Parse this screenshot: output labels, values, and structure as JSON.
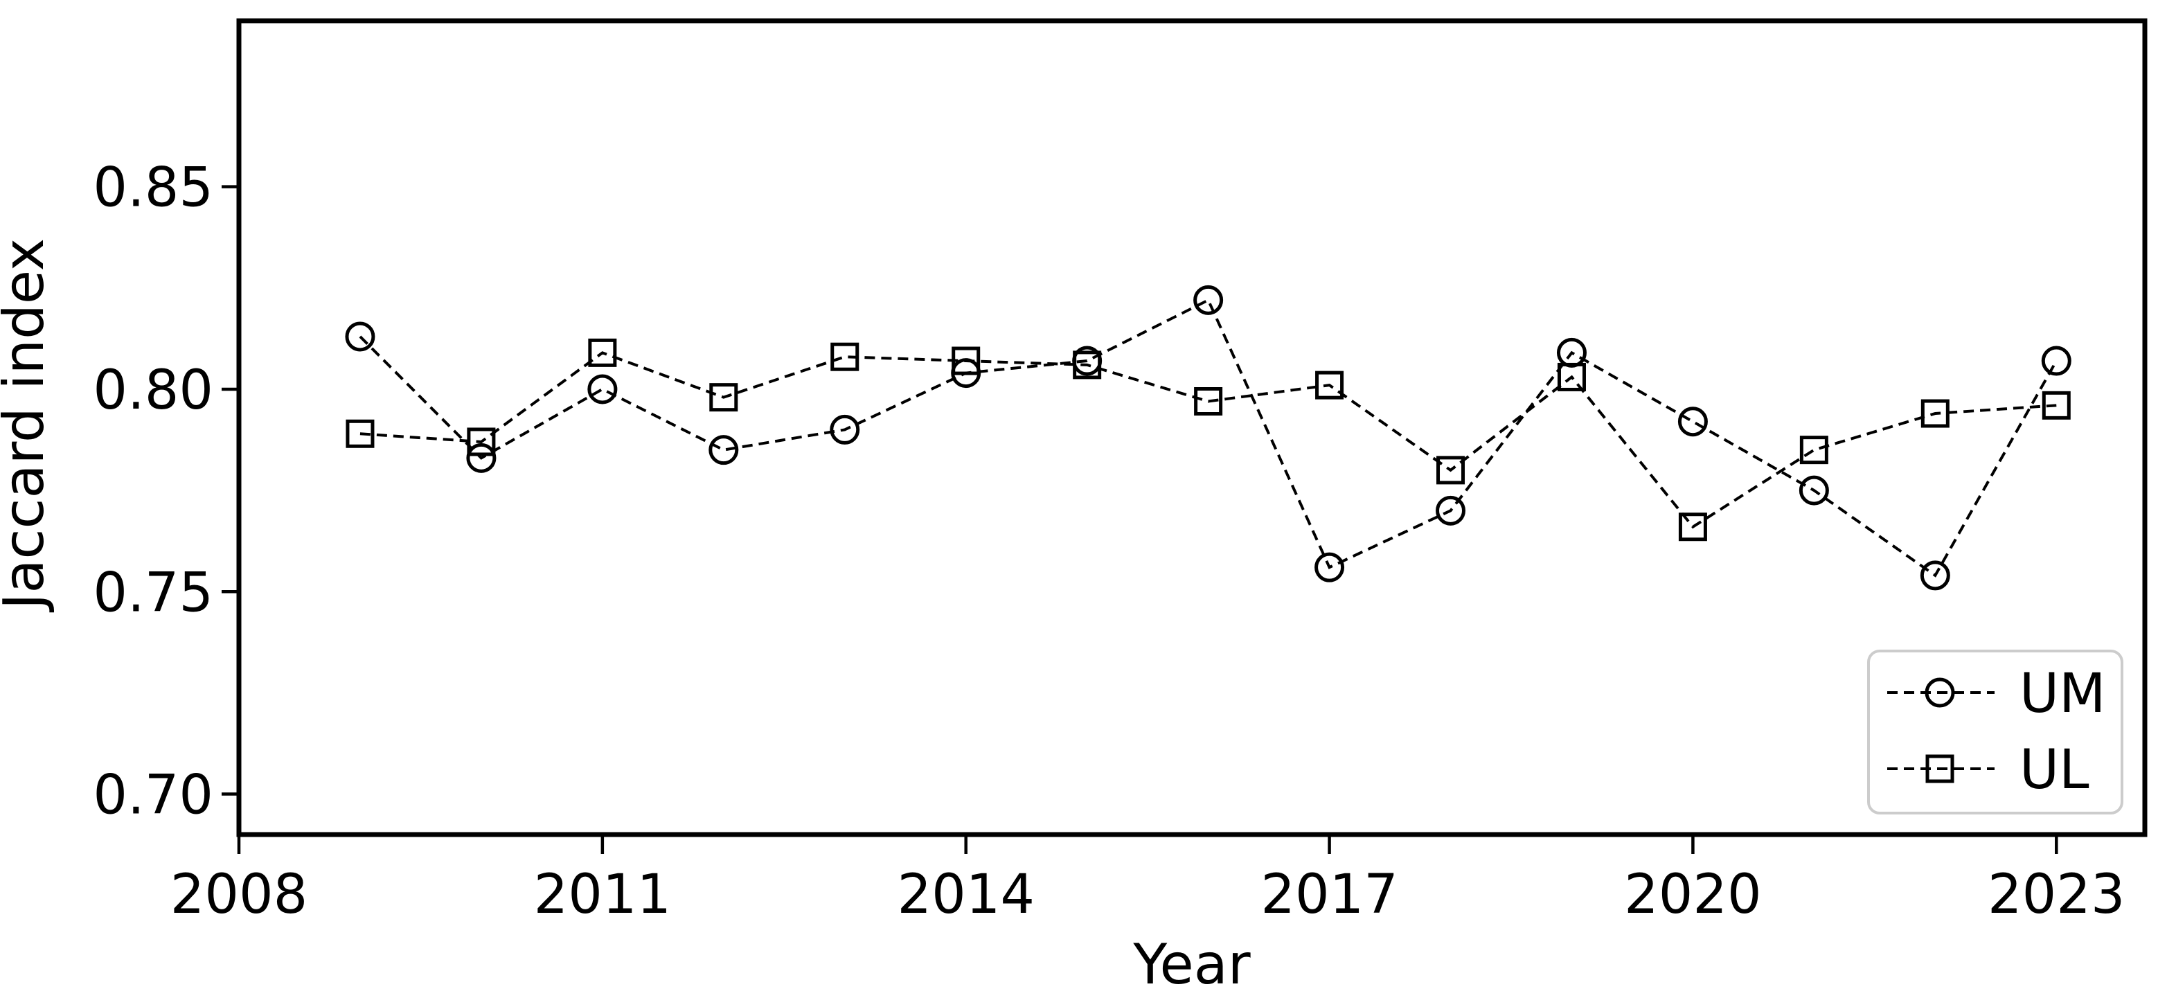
{
  "page": {
    "background": "#ffffff",
    "foreground": "#000000"
  },
  "chart_data": {
    "type": "line",
    "title": "",
    "xlabel": "Year",
    "ylabel": "Jaccard index",
    "x": [
      2009,
      2010,
      2011,
      2012,
      2013,
      2014,
      2015,
      2016,
      2017,
      2018,
      2019,
      2020,
      2021,
      2022,
      2023
    ],
    "series": [
      {
        "name": "UM",
        "marker": "circle",
        "line_style": "dashed",
        "color": "#000000",
        "values": [
          0.813,
          0.783,
          0.8,
          0.785,
          0.79,
          0.804,
          0.807,
          0.822,
          0.756,
          0.77,
          0.809,
          0.792,
          0.775,
          0.754,
          0.807
        ]
      },
      {
        "name": "UL",
        "marker": "square",
        "line_style": "dashed",
        "color": "#000000",
        "values": [
          0.789,
          0.787,
          0.809,
          0.798,
          0.808,
          0.807,
          0.806,
          0.797,
          0.801,
          0.78,
          0.803,
          0.766,
          0.785,
          0.794,
          0.796
        ]
      }
    ],
    "x_ticks": [
      2008,
      2011,
      2014,
      2017,
      2020,
      2023
    ],
    "x_tick_labels": [
      "2008",
      "2011",
      "2014",
      "2017",
      "2020",
      "2023"
    ],
    "y_ticks": [
      0.7,
      0.75,
      0.8,
      0.85
    ],
    "y_tick_labels": [
      "0.70",
      "0.75",
      "0.80",
      "0.85"
    ],
    "xlim": [
      2008,
      2023.73
    ],
    "ylim": [
      0.69,
      0.891
    ],
    "grid": false,
    "legend": {
      "position": "lower right",
      "entries": [
        "UM",
        "UL"
      ]
    }
  }
}
